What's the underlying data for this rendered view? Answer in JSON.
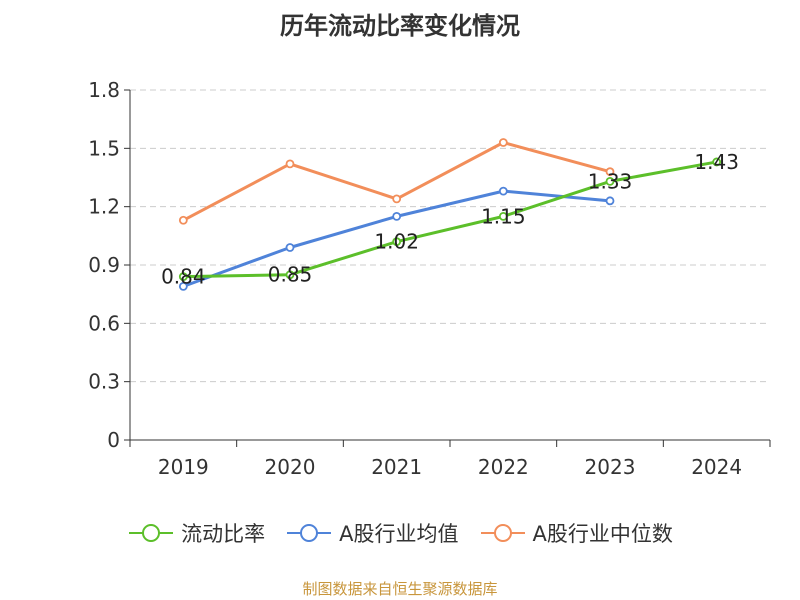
{
  "page": {
    "source": "制图数据来自恒生聚源数据库"
  },
  "colors": {
    "axis": "#333333",
    "grid": "#cccccc",
    "text": "#333333",
    "source": "#c8963c"
  },
  "chart_data": {
    "type": "line",
    "title": "历年流动比率变化情况",
    "xlabel": "",
    "ylabel": "",
    "categories": [
      "2019",
      "2020",
      "2021",
      "2022",
      "2023",
      "2024"
    ],
    "ylim": [
      0,
      1.8
    ],
    "yticks": [
      "0",
      "0.3",
      "0.6",
      "0.9",
      "1.2",
      "1.5",
      "1.8"
    ],
    "grid": true,
    "legend_position": "bottom",
    "series": [
      {
        "name": "流动比率",
        "color": "#5cbf2a",
        "values": [
          0.84,
          0.85,
          1.02,
          1.15,
          1.33,
          1.43
        ],
        "data_labels": [
          "0.84",
          "0.85",
          "1.02",
          "1.15",
          "1.33",
          "1.43"
        ]
      },
      {
        "name": "A股行业均值",
        "color": "#4f83d9",
        "values": [
          0.79,
          0.99,
          1.15,
          1.28,
          1.23,
          null
        ]
      },
      {
        "name": "A股行业中位数",
        "color": "#f28e5a",
        "values": [
          1.13,
          1.42,
          1.24,
          1.53,
          1.38,
          null
        ]
      }
    ]
  }
}
